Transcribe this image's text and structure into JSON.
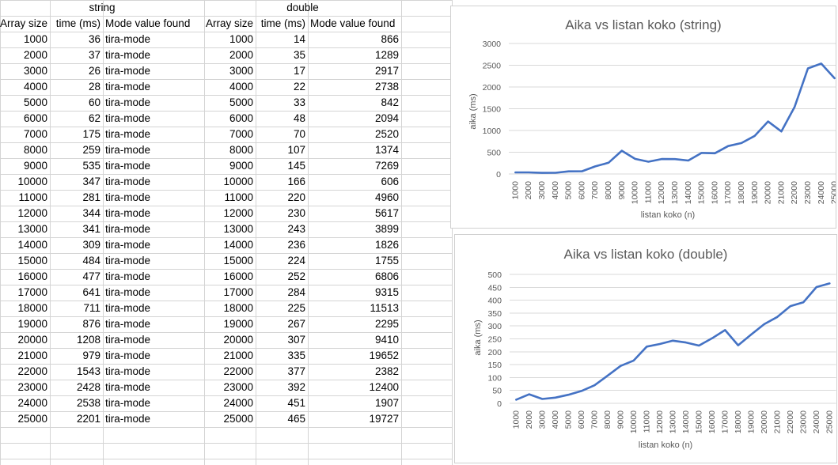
{
  "sheet": {
    "string_header": "string",
    "double_header": "double",
    "columns": {
      "array_size": "Array size",
      "time_ms": "time (ms)",
      "mode_value": "Mode value found"
    },
    "string_rows": [
      {
        "size": "1000",
        "time": "36",
        "mode": "tira-mode"
      },
      {
        "size": "2000",
        "time": "37",
        "mode": "tira-mode"
      },
      {
        "size": "3000",
        "time": "26",
        "mode": "tira-mode"
      },
      {
        "size": "4000",
        "time": "28",
        "mode": "tira-mode"
      },
      {
        "size": "5000",
        "time": "60",
        "mode": "tira-mode"
      },
      {
        "size": "6000",
        "time": "62",
        "mode": "tira-mode"
      },
      {
        "size": "7000",
        "time": "175",
        "mode": "tira-mode"
      },
      {
        "size": "8000",
        "time": "259",
        "mode": "tira-mode"
      },
      {
        "size": "9000",
        "time": "535",
        "mode": "tira-mode"
      },
      {
        "size": "10000",
        "time": "347",
        "mode": "tira-mode"
      },
      {
        "size": "11000",
        "time": "281",
        "mode": "tira-mode"
      },
      {
        "size": "12000",
        "time": "344",
        "mode": "tira-mode"
      },
      {
        "size": "13000",
        "time": "341",
        "mode": "tira-mode"
      },
      {
        "size": "14000",
        "time": "309",
        "mode": "tira-mode"
      },
      {
        "size": "15000",
        "time": "484",
        "mode": "tira-mode"
      },
      {
        "size": "16000",
        "time": "477",
        "mode": "tira-mode"
      },
      {
        "size": "17000",
        "time": "641",
        "mode": "tira-mode"
      },
      {
        "size": "18000",
        "time": "711",
        "mode": "tira-mode"
      },
      {
        "size": "19000",
        "time": "876",
        "mode": "tira-mode"
      },
      {
        "size": "20000",
        "time": "1208",
        "mode": "tira-mode"
      },
      {
        "size": "21000",
        "time": "979",
        "mode": "tira-mode"
      },
      {
        "size": "22000",
        "time": "1543",
        "mode": "tira-mode"
      },
      {
        "size": "23000",
        "time": "2428",
        "mode": "tira-mode"
      },
      {
        "size": "24000",
        "time": "2538",
        "mode": "tira-mode"
      },
      {
        "size": "25000",
        "time": "2201",
        "mode": "tira-mode"
      }
    ],
    "double_rows": [
      {
        "size": "1000",
        "time": "14",
        "mode": "866"
      },
      {
        "size": "2000",
        "time": "35",
        "mode": "1289"
      },
      {
        "size": "3000",
        "time": "17",
        "mode": "2917"
      },
      {
        "size": "4000",
        "time": "22",
        "mode": "2738"
      },
      {
        "size": "5000",
        "time": "33",
        "mode": "842"
      },
      {
        "size": "6000",
        "time": "48",
        "mode": "2094"
      },
      {
        "size": "7000",
        "time": "70",
        "mode": "2520"
      },
      {
        "size": "8000",
        "time": "107",
        "mode": "1374"
      },
      {
        "size": "9000",
        "time": "145",
        "mode": "7269"
      },
      {
        "size": "10000",
        "time": "166",
        "mode": "606"
      },
      {
        "size": "11000",
        "time": "220",
        "mode": "4960"
      },
      {
        "size": "12000",
        "time": "230",
        "mode": "5617"
      },
      {
        "size": "13000",
        "time": "243",
        "mode": "3899"
      },
      {
        "size": "14000",
        "time": "236",
        "mode": "1826"
      },
      {
        "size": "15000",
        "time": "224",
        "mode": "1755"
      },
      {
        "size": "16000",
        "time": "252",
        "mode": "6806"
      },
      {
        "size": "17000",
        "time": "284",
        "mode": "9315"
      },
      {
        "size": "18000",
        "time": "225",
        "mode": "11513"
      },
      {
        "size": "19000",
        "time": "267",
        "mode": "2295"
      },
      {
        "size": "20000",
        "time": "307",
        "mode": "9410"
      },
      {
        "size": "21000",
        "time": "335",
        "mode": "19652"
      },
      {
        "size": "22000",
        "time": "377",
        "mode": "2382"
      },
      {
        "size": "23000",
        "time": "392",
        "mode": "12400"
      },
      {
        "size": "24000",
        "time": "451",
        "mode": "1907"
      },
      {
        "size": "25000",
        "time": "465",
        "mode": "19727"
      }
    ]
  },
  "colors": {
    "series": "#4472c4",
    "gridline": "#d9d9d9",
    "cell_border": "#d4d4d4"
  },
  "chart_data": [
    {
      "type": "line",
      "title": "Aika vs listan koko (string)",
      "xlabel": "listan koko (n)",
      "ylabel": "aika (ms)",
      "ylim": [
        0,
        3000
      ],
      "yticks": [
        "0",
        "500",
        "1000",
        "1500",
        "2000",
        "2500",
        "3000"
      ],
      "categories": [
        "1000",
        "2000",
        "3000",
        "4000",
        "5000",
        "6000",
        "7000",
        "8000",
        "9000",
        "10000",
        "11000",
        "12000",
        "13000",
        "14000",
        "15000",
        "16000",
        "17000",
        "18000",
        "19000",
        "20000",
        "21000",
        "22000",
        "23000",
        "24000",
        "25000"
      ],
      "values": [
        36,
        37,
        26,
        28,
        60,
        62,
        175,
        259,
        535,
        347,
        281,
        344,
        341,
        309,
        484,
        477,
        641,
        711,
        876,
        1208,
        979,
        1543,
        2428,
        2538,
        2201
      ],
      "grid": true
    },
    {
      "type": "line",
      "title": "Aika vs listan koko (double)",
      "xlabel": "listan koko (n)",
      "ylabel": "aika (ms)",
      "ylim": [
        0,
        500
      ],
      "yticks": [
        "0",
        "50",
        "100",
        "150",
        "200",
        "250",
        "300",
        "350",
        "400",
        "450",
        "500"
      ],
      "categories": [
        "1000",
        "2000",
        "3000",
        "4000",
        "5000",
        "6000",
        "7000",
        "8000",
        "9000",
        "10000",
        "11000",
        "12000",
        "13000",
        "14000",
        "15000",
        "16000",
        "17000",
        "18000",
        "19000",
        "20000",
        "21000",
        "22000",
        "23000",
        "24000",
        "25000"
      ],
      "values": [
        14,
        35,
        17,
        22,
        33,
        48,
        70,
        107,
        145,
        166,
        220,
        230,
        243,
        236,
        224,
        252,
        284,
        225,
        267,
        307,
        335,
        377,
        392,
        451,
        465
      ],
      "grid": true
    }
  ]
}
